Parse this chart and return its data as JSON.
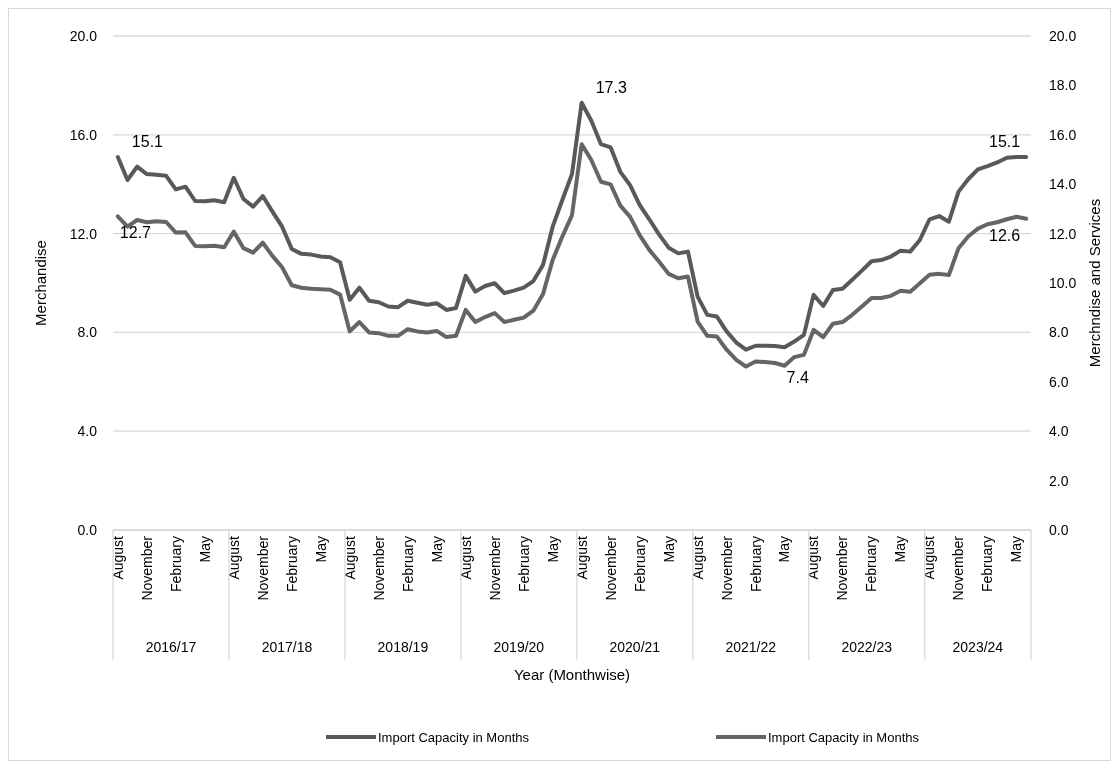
{
  "chart_data": {
    "type": "line",
    "xlabel": "Year (Monthwise)",
    "ylabel": "Merchandise",
    "y2label": "Merchndise and Services",
    "categories": [
      "August",
      null,
      null,
      "November",
      null,
      null,
      "February",
      null,
      null,
      "May",
      null,
      null,
      "August",
      null,
      null,
      "November",
      null,
      null,
      "February",
      null,
      null,
      "May",
      null,
      null,
      "August",
      null,
      null,
      "November",
      null,
      null,
      "February",
      null,
      null,
      "May",
      null,
      null,
      "August",
      null,
      null,
      "November",
      null,
      null,
      "February",
      null,
      null,
      "May",
      null,
      null,
      "August",
      null,
      null,
      "November",
      null,
      null,
      "February",
      null,
      null,
      "May",
      null,
      null,
      "August",
      null,
      null,
      "November",
      null,
      null,
      "February",
      null,
      null,
      "May",
      null,
      null,
      "August",
      null,
      null,
      "November",
      null,
      null,
      "February",
      null,
      null,
      "May",
      null,
      null,
      "August",
      null,
      null,
      "November",
      null,
      null,
      "February",
      null,
      null,
      "May",
      null
    ],
    "annotations": [
      "2016/17",
      "2017/18",
      "2018/19",
      "2019/20",
      "2020/21",
      "2021/22",
      "2022/23",
      "2023/24"
    ],
    "series": [
      {
        "name": "Import Capacity in Months",
        "color": "#595959",
        "values": [
          15.1,
          14.17,
          14.71,
          14.41,
          14.38,
          14.34,
          13.79,
          13.9,
          13.32,
          13.31,
          13.35,
          13.27,
          14.26,
          13.4,
          13.09,
          13.52,
          12.89,
          12.28,
          11.38,
          11.18,
          11.15,
          11.07,
          11.04,
          10.84,
          9.32,
          9.81,
          9.28,
          9.22,
          9.05,
          9.02,
          9.28,
          9.2,
          9.12,
          9.18,
          8.91,
          8.99,
          10.29,
          9.65,
          9.88,
          9.99,
          9.59,
          9.69,
          9.81,
          10.08,
          10.73,
          12.28,
          13.36,
          14.41,
          17.3,
          16.57,
          15.62,
          15.49,
          14.5,
          13.97,
          13.16,
          12.58,
          11.97,
          11.43,
          11.2,
          11.27,
          9.45,
          8.71,
          8.64,
          8.04,
          7.59,
          7.3,
          7.46,
          7.46,
          7.45,
          7.4,
          7.63,
          7.9,
          9.52,
          9.07,
          9.72,
          9.77,
          10.13,
          10.5,
          10.88,
          10.93,
          11.07,
          11.31,
          11.27,
          11.74,
          12.58,
          12.71,
          12.48,
          13.7,
          14.2,
          14.6,
          14.73,
          14.88,
          15.07,
          15.1,
          15.1
        ],
        "value_labels": [
          "15.1",
          null,
          null,
          null,
          null,
          null,
          null,
          null,
          null,
          null,
          null,
          null,
          null,
          null,
          null,
          null,
          null,
          null,
          null,
          null,
          null,
          null,
          null,
          null,
          null,
          null,
          null,
          null,
          null,
          null,
          null,
          null,
          null,
          null,
          null,
          null,
          null,
          null,
          null,
          null,
          null,
          null,
          null,
          null,
          null,
          null,
          null,
          null,
          "17.3",
          null,
          null,
          null,
          null,
          null,
          null,
          null,
          null,
          null,
          null,
          null,
          null,
          null,
          null,
          null,
          null,
          null,
          null,
          null,
          null,
          "7.4",
          null,
          null,
          null,
          null,
          null,
          null,
          null,
          null,
          null,
          null,
          null,
          null,
          null,
          null,
          null,
          null,
          null,
          null,
          null,
          null,
          null,
          null,
          null,
          null,
          "15.1"
        ]
      },
      {
        "name": "Import Capacity in Months",
        "color": "#656565",
        "axis": "y2",
        "values": [
          12.7,
          12.28,
          12.55,
          12.46,
          12.5,
          12.47,
          12.04,
          12.05,
          11.5,
          11.49,
          11.51,
          11.45,
          12.08,
          11.41,
          11.23,
          11.63,
          11.1,
          10.64,
          9.91,
          9.81,
          9.77,
          9.75,
          9.73,
          9.53,
          8.04,
          8.42,
          8.0,
          7.97,
          7.86,
          7.86,
          8.13,
          8.04,
          8.0,
          8.06,
          7.81,
          7.86,
          8.91,
          8.42,
          8.62,
          8.78,
          8.42,
          8.51,
          8.6,
          8.88,
          9.55,
          10.93,
          11.88,
          12.75,
          15.62,
          14.98,
          14.1,
          13.99,
          13.13,
          12.69,
          11.94,
          11.34,
          10.87,
          10.37,
          10.19,
          10.26,
          8.44,
          7.86,
          7.83,
          7.3,
          6.89,
          6.62,
          6.82,
          6.8,
          6.76,
          6.65,
          7.0,
          7.09,
          8.1,
          7.81,
          8.35,
          8.42,
          8.71,
          9.05,
          9.39,
          9.39,
          9.48,
          9.69,
          9.65,
          9.99,
          10.33,
          10.37,
          10.32,
          11.41,
          11.88,
          12.2,
          12.38,
          12.46,
          12.58,
          12.68,
          12.6
        ],
        "value_labels": [
          "12.7",
          null,
          null,
          null,
          null,
          null,
          null,
          null,
          null,
          null,
          null,
          null,
          null,
          null,
          null,
          null,
          null,
          null,
          null,
          null,
          null,
          null,
          null,
          null,
          null,
          null,
          null,
          null,
          null,
          null,
          null,
          null,
          null,
          null,
          null,
          null,
          null,
          null,
          null,
          null,
          null,
          null,
          null,
          null,
          null,
          null,
          null,
          null,
          null,
          null,
          null,
          null,
          null,
          null,
          null,
          null,
          null,
          null,
          null,
          null,
          null,
          null,
          null,
          null,
          null,
          null,
          null,
          null,
          null,
          null,
          null,
          null,
          null,
          null,
          null,
          null,
          null,
          null,
          null,
          null,
          null,
          null,
          null,
          null,
          null,
          null,
          null,
          null,
          null,
          null,
          null,
          null,
          null,
          null,
          "12.6"
        ]
      }
    ],
    "ylim": [
      0,
      20
    ],
    "yticks": [
      {
        "value": 0,
        "label": "0.0"
      },
      {
        "value": 4,
        "label": "4.0"
      },
      {
        "value": 8,
        "label": "8.0"
      },
      {
        "value": 12,
        "label": "12.0"
      },
      {
        "value": 16,
        "label": "16.0"
      },
      {
        "value": 20,
        "label": "20.0"
      }
    ],
    "y2lim": [
      0,
      20
    ],
    "y2ticks": [
      {
        "value": 0,
        "label": "0.0"
      },
      {
        "value": 2,
        "label": "2.0"
      },
      {
        "value": 4,
        "label": "4.0"
      },
      {
        "value": 6,
        "label": "6.0"
      },
      {
        "value": 8,
        "label": "8.0"
      },
      {
        "value": 10,
        "label": "10.0"
      },
      {
        "value": 12,
        "label": "12.0"
      },
      {
        "value": 14,
        "label": "14.0"
      },
      {
        "value": 16,
        "label": "16.0"
      },
      {
        "value": 18,
        "label": "18.0"
      },
      {
        "value": 20,
        "label": "20.0"
      }
    ],
    "grid": "y",
    "legend": "bottom"
  }
}
